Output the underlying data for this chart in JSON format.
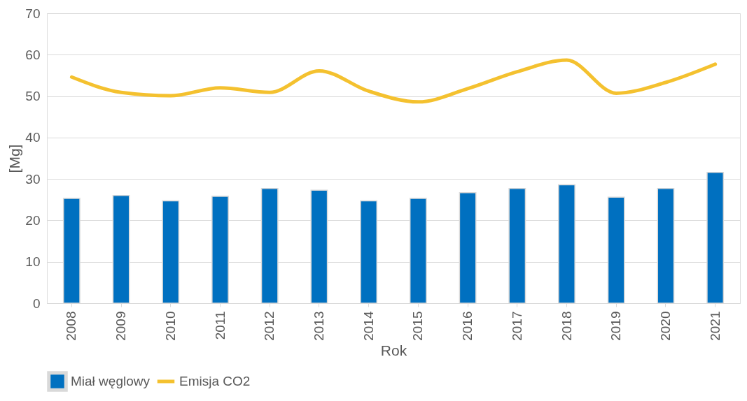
{
  "chart_data": {
    "type": "bar",
    "xlabel": "Rok",
    "ylabel": "[Mg]",
    "categories": [
      "2008",
      "2009",
      "2010",
      "2011",
      "2012",
      "2013",
      "2014",
      "2015",
      "2016",
      "2017",
      "2018",
      "2019",
      "2020",
      "2021"
    ],
    "series": [
      {
        "name": "Miał węglowy",
        "color": "#0070c0",
        "values": [
          25.3,
          26.0,
          24.7,
          25.8,
          27.7,
          27.3,
          24.7,
          25.3,
          26.7,
          27.7,
          28.6,
          25.6,
          27.7,
          31.6
        ]
      },
      {
        "name": "Emisja CO2",
        "type": "line",
        "color": "#f4c12f",
        "values": [
          54.6,
          50.9,
          50.1,
          52.0,
          50.9,
          56.1,
          51.2,
          48.6,
          51.8,
          55.9,
          58.7,
          50.7,
          53.3,
          57.7
        ]
      }
    ],
    "ylim": [
      0,
      70
    ],
    "yticks": [
      0,
      10,
      20,
      30,
      40,
      50,
      60,
      70
    ],
    "grid": "y",
    "legend": "bottom",
    "line_style": "solid"
  }
}
